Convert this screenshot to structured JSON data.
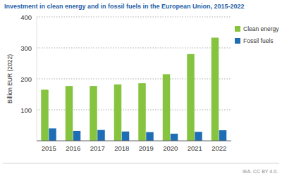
{
  "chart_data": {
    "type": "bar",
    "title": "Investment in clean energy and in fossil fuels in the European Union, 2015-2022",
    "y_label": "Billion EUR (2022)",
    "source": "IEA. CC BY 4.0.",
    "categories": [
      "2015",
      "2016",
      "2017",
      "2018",
      "2019",
      "2020",
      "2021",
      "2022"
    ],
    "series": [
      {
        "name": "Clean energy",
        "color": "#86c440",
        "values": [
          165,
          177,
          177,
          182,
          186,
          215,
          280,
          333
        ]
      },
      {
        "name": "Fossil fuels",
        "color": "#1f6db5",
        "values": [
          40,
          32,
          35,
          30,
          28,
          23,
          29,
          34
        ]
      }
    ],
    "ylim": [
      0,
      400
    ],
    "yticks": [
      100,
      200,
      300,
      400
    ],
    "grid": true,
    "legend": "right"
  }
}
